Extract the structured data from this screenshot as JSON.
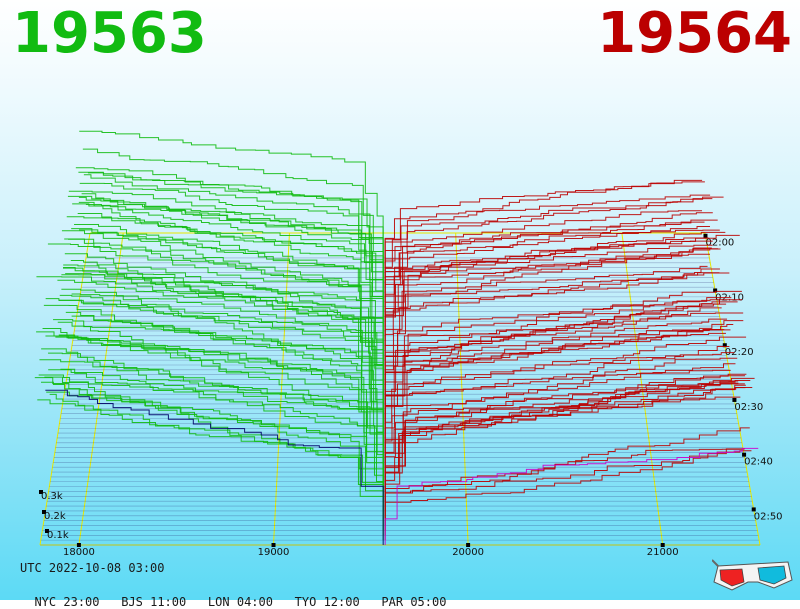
{
  "header": {
    "bid_price": "19563",
    "ask_price": "19564"
  },
  "time": {
    "utc": "UTC 2022-10-08 03:00",
    "zones": [
      {
        "label": "NYC",
        "time": "23:00"
      },
      {
        "label": "BJS",
        "time": "11:00"
      },
      {
        "label": "LON",
        "time": "04:00"
      },
      {
        "label": "TYO",
        "time": "12:00"
      },
      {
        "label": "PAR",
        "time": "05:00"
      }
    ]
  },
  "icons": {
    "glasses": "3d-glasses-icon"
  },
  "colors": {
    "bid": "#11bb11",
    "ask": "#bb0000",
    "grid": "#e8e800",
    "front_ask": "#cc00cc",
    "front_bid": "#000066"
  },
  "chart_data": {
    "type": "area",
    "title": "",
    "x_axis": {
      "ticks": [
        "18000",
        "19000",
        "20000",
        "21000"
      ],
      "range": [
        17800,
        21500
      ]
    },
    "depth_axis": {
      "ticks": [
        "0.1k",
        "0.2k",
        "0.3k"
      ]
    },
    "time_axis": {
      "ticks": [
        "02:00",
        "02:10",
        "02:20",
        "02:30",
        "02:40",
        "02:50"
      ]
    },
    "mid_price": 19563.5,
    "snapshot_count": 60,
    "series": [
      {
        "name": "",
        "side": "bid",
        "color": "#11bb11"
      },
      {
        "name": "",
        "side": "ask",
        "color": "#bb0000"
      }
    ]
  }
}
